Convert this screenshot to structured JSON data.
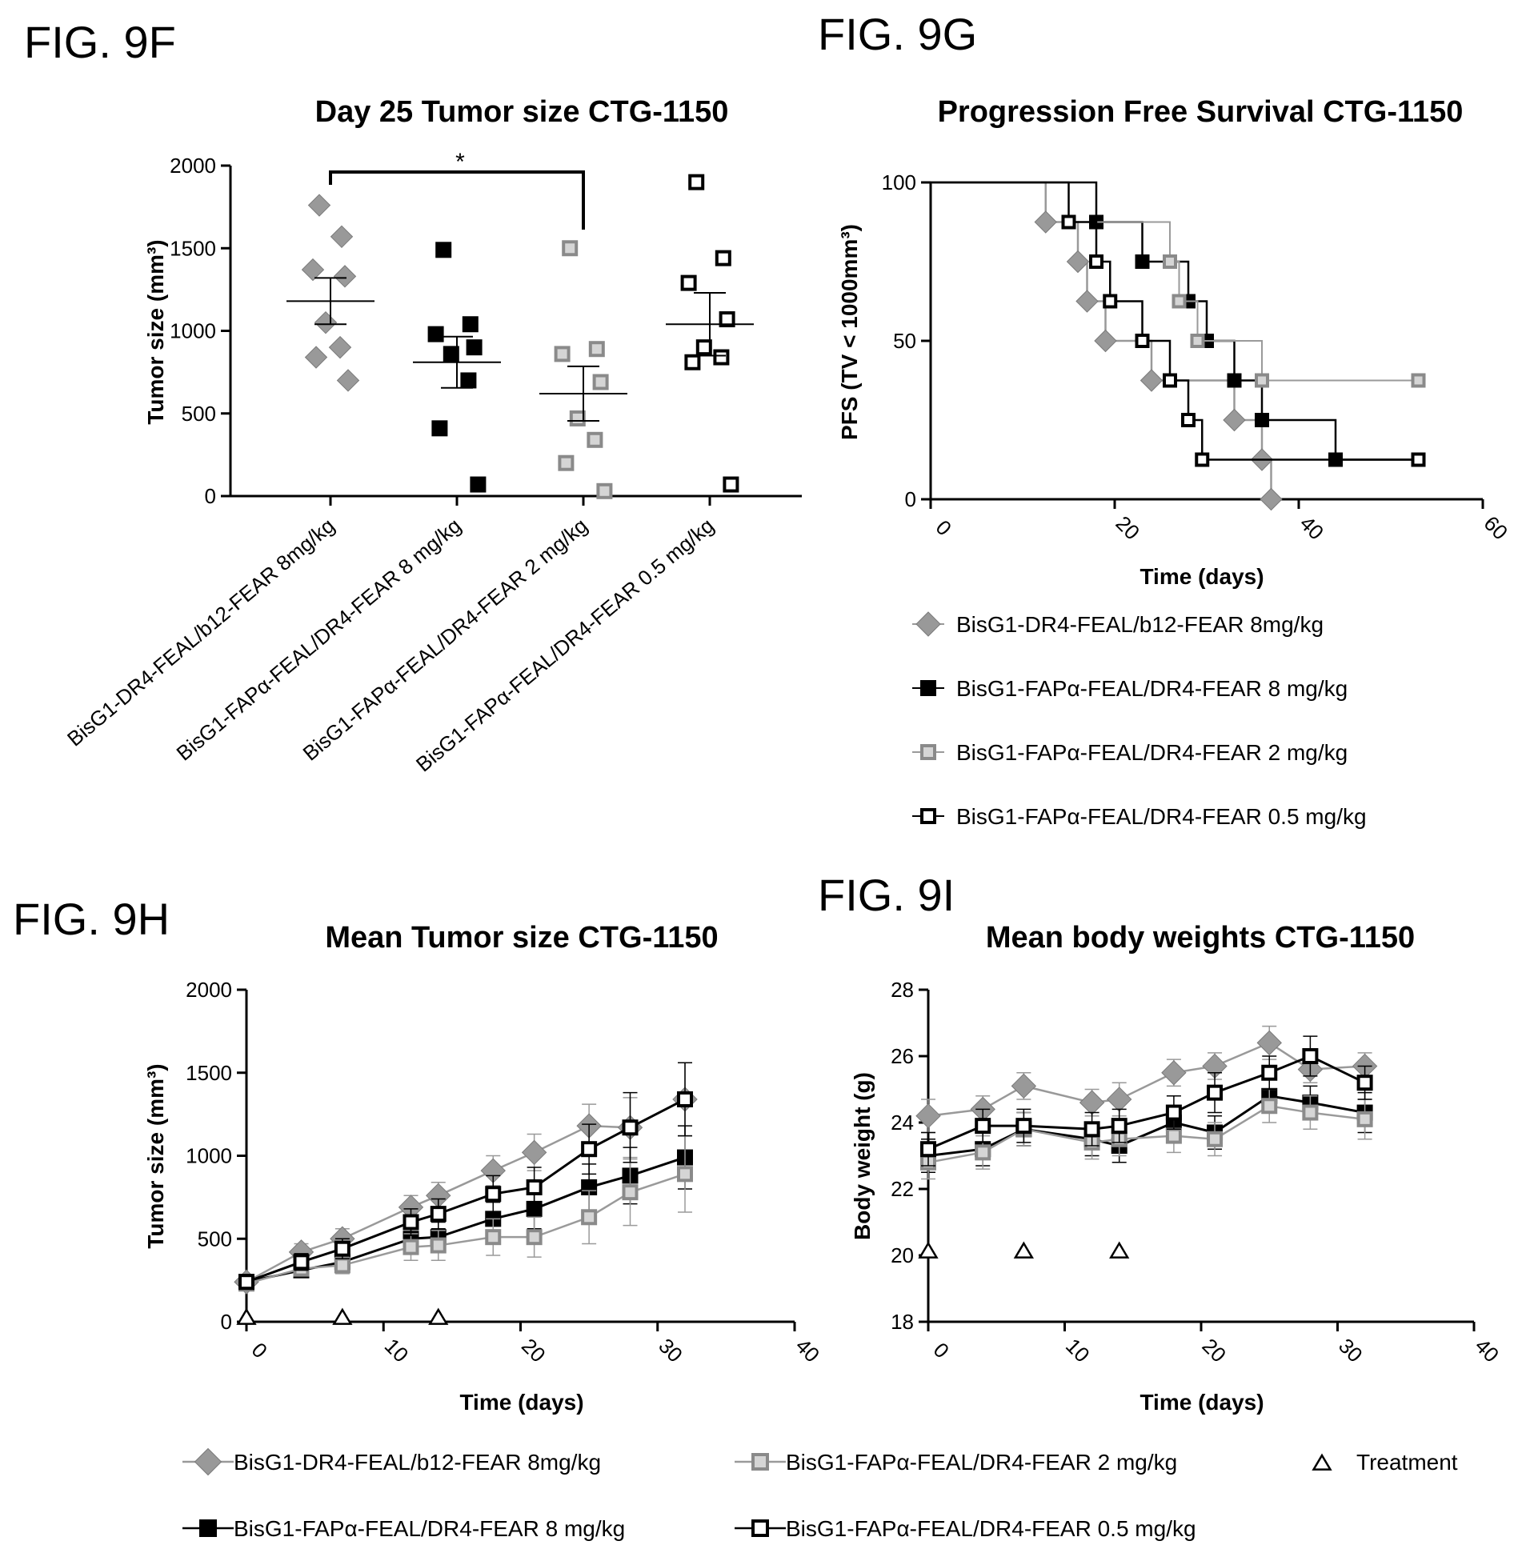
{
  "figures": {
    "f": "FIG. 9F",
    "g": "FIG. 9G",
    "h": "FIG. 9H",
    "i": "FIG. 9I"
  },
  "colors": {
    "g1": "#999999",
    "g2": "#000000",
    "g3": "#8a8a8a",
    "g4": "#000000"
  },
  "series_names": [
    "BisG1-DR4-FEAL/b12-FEAR 8mg/kg",
    "BisG1-FAPα-FEAL/DR4-FEAR 8 mg/kg",
    "BisG1-FAPα-FEAL/DR4-FEAR 2 mg/kg",
    "BisG1-FAPα-FEAL/DR4-FEAR 0.5 mg/kg"
  ],
  "treatment_label": "Treatment",
  "chart_data": [
    {
      "id": "9F",
      "type": "scatter",
      "title": "Day 25 Tumor size CTG-1150",
      "ylabel": "Tumor size (mm³)",
      "ylim": [
        0,
        2000
      ],
      "yticks": [
        0,
        500,
        1000,
        1500,
        2000
      ],
      "categories": [
        "BisG1-DR4-FEAL/b12-FEAR 8mg/kg",
        "BisG1-FAPα-FEAL/DR4-FEAR 8 mg/kg",
        "BisG1-FAPα-FEAL/DR4-FEAR 2 mg/kg",
        "BisG1-FAPα-FEAL/DR4-FEAR 0.5 mg/kg"
      ],
      "groups": [
        {
          "values": [
            1760,
            1570,
            1370,
            1330,
            1050,
            900,
            840,
            700
          ],
          "mean": 1180,
          "sem": 140
        },
        {
          "values": [
            1490,
            1040,
            980,
            900,
            860,
            700,
            410,
            70
          ],
          "mean": 810,
          "sem": 155
        },
        {
          "values": [
            1500,
            890,
            860,
            690,
            470,
            340,
            200,
            30
          ],
          "mean": 620,
          "sem": 165
        },
        {
          "values": [
            1900,
            1440,
            1290,
            1070,
            900,
            840,
            810,
            70
          ],
          "mean": 1040,
          "sem": 190
        }
      ],
      "significance": {
        "from": 0,
        "to": 2,
        "label": "*"
      }
    },
    {
      "id": "9G",
      "type": "line",
      "title": "Progression Free Survival CTG-1150",
      "xlabel": "Time (days)",
      "ylabel": "PFS (TV < 1000mm³)",
      "xlim": [
        0,
        60
      ],
      "ylim": [
        0,
        100
      ],
      "xticks": [
        0,
        20,
        40,
        60
      ],
      "yticks": [
        0,
        50,
        100
      ],
      "series": [
        {
          "name": "BisG1-DR4-FEAL/b12-FEAR 8mg/kg",
          "points": [
            [
              0,
              100
            ],
            [
              12.5,
              87.5
            ],
            [
              16,
              75
            ],
            [
              17,
              62.5
            ],
            [
              19,
              50
            ],
            [
              24,
              37.5
            ],
            [
              33,
              25
            ],
            [
              36,
              12.5
            ],
            [
              37,
              0
            ]
          ]
        },
        {
          "name": "BisG1-FAPα-FEAL/DR4-FEAR 8 mg/kg",
          "points": [
            [
              0,
              100
            ],
            [
              18,
              87.5
            ],
            [
              23,
              75
            ],
            [
              28,
              62.5
            ],
            [
              30,
              50
            ],
            [
              33,
              37.5
            ],
            [
              36,
              25
            ],
            [
              44,
              12.5
            ],
            [
              53,
              12.5
            ]
          ]
        },
        {
          "name": "BisG1-FAPα-FEAL/DR4-FEAR 2 mg/kg",
          "points": [
            [
              0,
              100
            ],
            [
              15,
              87.5
            ],
            [
              26,
              75
            ],
            [
              27,
              62.5
            ],
            [
              29,
              50
            ],
            [
              36,
              37.5
            ],
            [
              53,
              37.5
            ]
          ]
        },
        {
          "name": "BisG1-FAPα-FEAL/DR4-FEAR 0.5 mg/kg",
          "points": [
            [
              0,
              100
            ],
            [
              15,
              87.5
            ],
            [
              18,
              75
            ],
            [
              19.5,
              62.5
            ],
            [
              23,
              50
            ],
            [
              26,
              37.5
            ],
            [
              28,
              25
            ],
            [
              29.5,
              12.5
            ],
            [
              53,
              12.5
            ]
          ]
        }
      ]
    },
    {
      "id": "9H",
      "type": "line",
      "title": "Mean Tumor size CTG-1150",
      "xlabel": "Time (days)",
      "ylabel": "Tumor size (mm³)",
      "xlim": [
        0,
        40
      ],
      "ylim": [
        0,
        2000
      ],
      "xticks": [
        0,
        10,
        20,
        30,
        40
      ],
      "yticks": [
        0,
        500,
        1000,
        1500,
        2000
      ],
      "x": [
        0,
        4,
        7,
        12,
        14,
        18,
        21,
        25,
        28,
        32
      ],
      "series": [
        {
          "name": "BisG1-DR4-FEAL/b12-FEAR 8mg/kg",
          "values": [
            240,
            420,
            500,
            690,
            760,
            910,
            1020,
            1180,
            1170,
            1340
          ],
          "err": [
            30,
            50,
            60,
            70,
            80,
            90,
            110,
            130,
            180,
            220
          ]
        },
        {
          "name": "BisG1-FAPα-FEAL/DR4-FEAR 8 mg/kg",
          "values": [
            240,
            310,
            360,
            500,
            510,
            620,
            680,
            810,
            880,
            990
          ],
          "err": [
            30,
            40,
            50,
            80,
            90,
            100,
            120,
            140,
            170,
            190
          ]
        },
        {
          "name": "BisG1-FAPα-FEAL/DR4-FEAR 2 mg/kg",
          "values": [
            230,
            320,
            340,
            450,
            460,
            510,
            510,
            630,
            780,
            890
          ],
          "err": [
            30,
            40,
            50,
            80,
            90,
            110,
            120,
            160,
            200,
            230
          ]
        },
        {
          "name": "BisG1-FAPα-FEAL/DR4-FEAR 0.5 mg/kg",
          "values": [
            240,
            360,
            440,
            600,
            650,
            770,
            810,
            1040,
            1170,
            1340
          ],
          "err": [
            30,
            50,
            60,
            80,
            90,
            110,
            120,
            150,
            210,
            220
          ]
        }
      ],
      "treatment_days": [
        0,
        7,
        14
      ],
      "treatment_y": 0
    },
    {
      "id": "9I",
      "type": "line",
      "title": "Mean body weights CTG-1150",
      "xlabel": "Time (days)",
      "ylabel": "Body weight (g)",
      "xlim": [
        0,
        40
      ],
      "ylim": [
        18,
        28
      ],
      "xticks": [
        0,
        10,
        20,
        30,
        40
      ],
      "yticks": [
        18,
        20,
        22,
        24,
        26,
        28
      ],
      "x": [
        0,
        4,
        7,
        12,
        14,
        18,
        21,
        25,
        28,
        32
      ],
      "series": [
        {
          "name": "BisG1-DR4-FEAL/b12-FEAR 8mg/kg",
          "values": [
            24.2,
            24.4,
            25.1,
            24.6,
            24.7,
            25.5,
            25.7,
            26.4,
            25.6,
            25.7
          ],
          "err": [
            0.5,
            0.4,
            0.4,
            0.4,
            0.5,
            0.4,
            0.4,
            0.5,
            0.4,
            0.4
          ]
        },
        {
          "name": "BisG1-FAPα-FEAL/DR4-FEAR 8 mg/kg",
          "values": [
            23.0,
            23.2,
            23.8,
            23.5,
            23.3,
            24.0,
            23.7,
            24.8,
            24.6,
            24.3
          ],
          "err": [
            0.5,
            0.5,
            0.5,
            0.5,
            0.5,
            0.5,
            0.5,
            0.5,
            0.5,
            0.6
          ]
        },
        {
          "name": "BisG1-FAPα-FEAL/DR4-FEAR 2 mg/kg",
          "values": [
            22.8,
            23.1,
            23.8,
            23.4,
            23.5,
            23.6,
            23.5,
            24.5,
            24.3,
            24.1
          ],
          "err": [
            0.5,
            0.5,
            0.5,
            0.5,
            0.5,
            0.5,
            0.5,
            0.5,
            0.5,
            0.6
          ]
        },
        {
          "name": "BisG1-FAPα-FEAL/DR4-FEAR 0.5 mg/kg",
          "values": [
            23.2,
            23.9,
            23.9,
            23.8,
            23.9,
            24.3,
            24.9,
            25.5,
            26.0,
            25.2
          ],
          "err": [
            0.5,
            0.5,
            0.5,
            0.5,
            0.5,
            0.5,
            0.6,
            0.5,
            0.6,
            0.5
          ]
        }
      ],
      "treatment_days": [
        0,
        7,
        14
      ],
      "treatment_y": 20
    }
  ]
}
